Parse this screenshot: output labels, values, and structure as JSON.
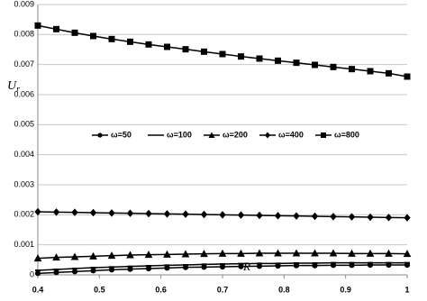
{
  "chart_data": {
    "type": "line",
    "ylabel": {
      "text": "U",
      "subscript": "r"
    },
    "xlabel": "R",
    "x": [
      0.4,
      0.43,
      0.46,
      0.49,
      0.52,
      0.55,
      0.58,
      0.61,
      0.64,
      0.67,
      0.7,
      0.73,
      0.76,
      0.79,
      0.82,
      0.85,
      0.88,
      0.91,
      0.94,
      0.97,
      1.0
    ],
    "series": [
      {
        "name": "ω=50",
        "color": "#000000",
        "marker": "circle",
        "values": [
          5e-05,
          8e-05,
          0.00011,
          0.00014,
          0.00017,
          0.00019,
          0.00021,
          0.00023,
          0.00025,
          0.00026,
          0.00027,
          0.00028,
          0.00029,
          0.0003,
          0.00031,
          0.00031,
          0.00032,
          0.00032,
          0.00033,
          0.00033,
          0.00033
        ]
      },
      {
        "name": "ω=100",
        "color": "#000000",
        "marker": "dash",
        "values": [
          0.00015,
          0.00018,
          0.00021,
          0.00024,
          0.00026,
          0.00028,
          0.0003,
          0.00032,
          0.00033,
          0.00035,
          0.00036,
          0.00037,
          0.00038,
          0.00038,
          0.00039,
          0.00039,
          0.0004,
          0.0004,
          0.0004,
          0.0004,
          0.0004
        ]
      },
      {
        "name": "ω=200",
        "color": "#000000",
        "marker": "triangle",
        "values": [
          0.00055,
          0.00058,
          0.0006,
          0.00062,
          0.00064,
          0.00066,
          0.00067,
          0.00068,
          0.00069,
          0.0007,
          0.00071,
          0.00071,
          0.00072,
          0.00072,
          0.00072,
          0.00072,
          0.00072,
          0.00071,
          0.00071,
          0.00071,
          0.0007
        ]
      },
      {
        "name": "ω=400",
        "color": "#000000",
        "marker": "diamond",
        "values": [
          0.0021,
          0.00209,
          0.00208,
          0.00207,
          0.00206,
          0.00205,
          0.00204,
          0.00203,
          0.00202,
          0.00201,
          0.002,
          0.00199,
          0.00198,
          0.00197,
          0.00196,
          0.00195,
          0.00194,
          0.00193,
          0.00192,
          0.00191,
          0.0019
        ]
      },
      {
        "name": "ω=800",
        "color": "#000000",
        "marker": "square",
        "values": [
          0.0083,
          0.00818,
          0.00806,
          0.00795,
          0.00785,
          0.00776,
          0.00767,
          0.00759,
          0.00751,
          0.00743,
          0.00735,
          0.00727,
          0.0072,
          0.00713,
          0.00706,
          0.00699,
          0.00692,
          0.00685,
          0.00678,
          0.00671,
          0.0066
        ]
      }
    ],
    "xlim": [
      0.4,
      1
    ],
    "xticks": [
      0.4,
      0.5,
      0.6,
      0.7,
      0.8,
      0.9,
      1
    ],
    "ylim": [
      0,
      0.009
    ],
    "yticks": [
      0,
      0.001,
      0.002,
      0.003,
      0.004,
      0.005,
      0.006,
      0.007,
      0.008,
      0.009
    ],
    "grid": true
  }
}
